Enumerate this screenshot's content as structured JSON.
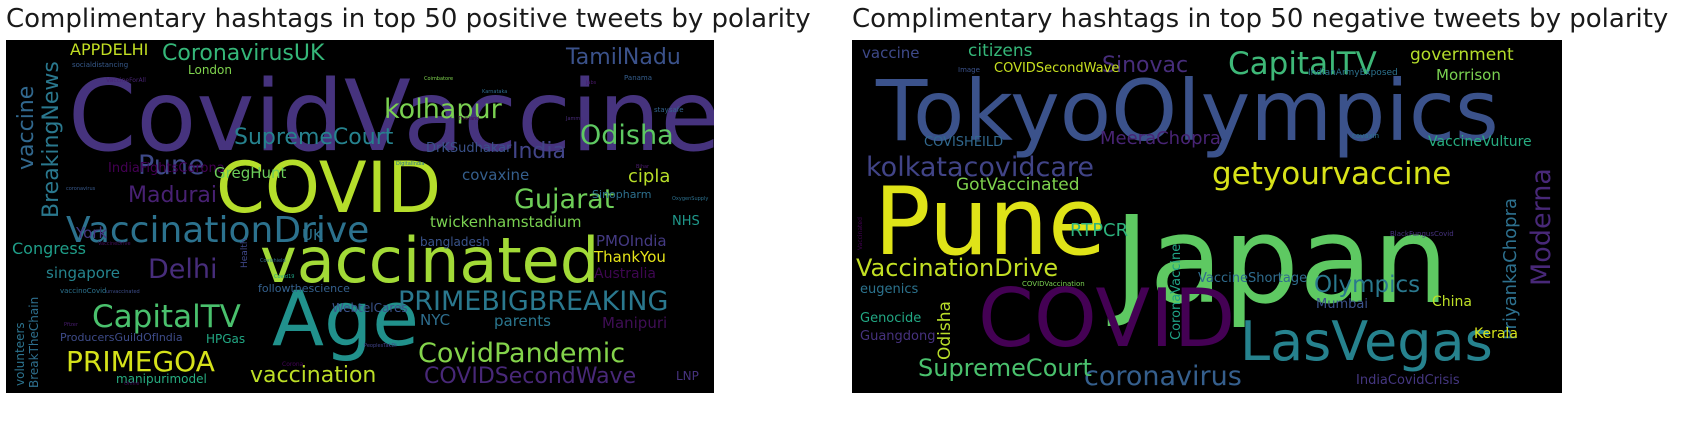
{
  "panels": [
    {
      "title": "Complimentary hashtags in top 50 positive tweets by polarity",
      "words": [
        {
          "text": "CovidVaccine",
          "color": "#46337e"
        },
        {
          "text": "COVID",
          "color": "#b5de2b"
        },
        {
          "text": "vaccinated",
          "color": "#a2da37"
        },
        {
          "text": "Age",
          "color": "#21918c"
        },
        {
          "text": "VaccinationDrive",
          "color": "#2c728e"
        },
        {
          "text": "CapitalTV",
          "color": "#4ac16d"
        },
        {
          "text": "PRIMEGOA",
          "color": "#d5e21a"
        },
        {
          "text": "kolhapur",
          "color": "#7ad151"
        },
        {
          "text": "CoronavirusUK",
          "color": "#35b779"
        },
        {
          "text": "APPDELHI",
          "color": "#c2df23"
        },
        {
          "text": "TamilNadu",
          "color": "#3b528b"
        },
        {
          "text": "Odisha",
          "color": "#5ec962"
        },
        {
          "text": "Gujarat",
          "color": "#6ece58"
        },
        {
          "text": "Pune",
          "color": "#3e4989"
        },
        {
          "text": "SupremeCourt",
          "color": "#26828e"
        },
        {
          "text": "India",
          "color": "#414487"
        },
        {
          "text": "BreakingNews",
          "color": "#2a788e"
        },
        {
          "text": "vaccine",
          "color": "#31688e"
        },
        {
          "text": "Delhi",
          "color": "#472d7b"
        },
        {
          "text": "Madurai",
          "color": "#482173"
        },
        {
          "text": "PRIMEBIGBREAKING",
          "color": "#2a788e"
        },
        {
          "text": "CovidPandemic",
          "color": "#84d44b"
        },
        {
          "text": "vaccination",
          "color": "#bddf26"
        },
        {
          "text": "COVIDSecondWave",
          "color": "#482878"
        },
        {
          "text": "London",
          "color": "#7fd34e"
        },
        {
          "text": "IndiaFightsCorona",
          "color": "#440154"
        },
        {
          "text": "DrKSudhakar",
          "color": "#3b528b"
        },
        {
          "text": "GregHunt",
          "color": "#6ccd5a"
        },
        {
          "text": "covaxine",
          "color": "#355f8d"
        },
        {
          "text": "cipla",
          "color": "#b8de29"
        },
        {
          "text": "Sinopharm",
          "color": "#2d708e"
        },
        {
          "text": "twickenhamstadium",
          "color": "#7ad151"
        },
        {
          "text": "NHS",
          "color": "#1f988b"
        },
        {
          "text": "PMOIndia",
          "color": "#443a83"
        },
        {
          "text": "ThankYou",
          "color": "#e5e419"
        },
        {
          "text": "Australia",
          "color": "#3e0751"
        },
        {
          "text": "bangladesh",
          "color": "#3a548c"
        },
        {
          "text": "Congress",
          "color": "#1f9e89"
        },
        {
          "text": "singapore",
          "color": "#25848e"
        },
        {
          "text": "York",
          "color": "#453781"
        },
        {
          "text": "UK",
          "color": "#2c728e"
        },
        {
          "text": "followthescience",
          "color": "#34608d"
        },
        {
          "text": "WebtelCares",
          "color": "#3a538b"
        },
        {
          "text": "NYC",
          "color": "#2e6e8e"
        },
        {
          "text": "parents",
          "color": "#2a768e"
        },
        {
          "text": "Manipuri",
          "color": "#3f0e55"
        },
        {
          "text": "HPGas",
          "color": "#22a884"
        },
        {
          "text": "ProducersGuildOfIndia",
          "color": "#3e4c8a"
        },
        {
          "text": "manipurimodel",
          "color": "#27ad81"
        },
        {
          "text": "LNP",
          "color": "#46327e"
        },
        {
          "text": "volunteers",
          "color": "#2c738e"
        },
        {
          "text": "BreakTheChain",
          "color": "#2e6f8e"
        },
        {
          "text": "socialdistancing",
          "color": "#375a8c"
        },
        {
          "text": "VaccineForAll",
          "color": "#482475"
        },
        {
          "text": "Panama",
          "color": "#355e8d"
        },
        {
          "text": "staysafe",
          "color": "#33638d"
        },
        {
          "text": "Coimbatore",
          "color": "#7fd34e"
        },
        {
          "text": "Thailand",
          "color": "#4a0c4e"
        },
        {
          "text": "Health",
          "color": "#3f4788"
        },
        {
          "text": "vaccinoCovid",
          "color": "#2c728e"
        },
        {
          "text": "Pfizer",
          "color": "#481d6f"
        },
        {
          "text": "Corona",
          "color": "#450559"
        },
        {
          "text": "PeoplesTakDi",
          "color": "#41448a"
        },
        {
          "text": "Covishield",
          "color": "#2e6d8e"
        },
        {
          "text": "Covid19",
          "color": "#20a486"
        },
        {
          "text": "VaccineDrive",
          "color": "#440f5a"
        },
        {
          "text": "OxygenSupply",
          "color": "#2d718e"
        },
        {
          "text": "coronavirus",
          "color": "#38598c"
        },
        {
          "text": "jabs",
          "color": "#48186a"
        },
        {
          "text": "Jammu",
          "color": "#4b2d7f"
        },
        {
          "text": "Onfire",
          "color": "#440a58"
        },
        {
          "text": "unvaccinated",
          "color": "#3d4e8a"
        },
        {
          "text": "Karnataka",
          "color": "#2f6c8e"
        },
        {
          "text": "DigitalIndia",
          "color": "#2b758e"
        },
        {
          "text": "Bihar",
          "color": "#4c1d6f"
        }
      ]
    },
    {
      "title": "Complimentary hashtags in top 50 negative tweets by polarity",
      "words": [
        {
          "text": "TokyoOlympics",
          "color": "#3b528b"
        },
        {
          "text": "Japan",
          "color": "#5ec962"
        },
        {
          "text": "Pune",
          "color": "#dfe318"
        },
        {
          "text": "COVID",
          "color": "#440154"
        },
        {
          "text": "LasVegas",
          "color": "#26828e"
        },
        {
          "text": "CapitalTV",
          "color": "#3eb878"
        },
        {
          "text": "getyourvaccine",
          "color": "#d8e219"
        },
        {
          "text": "kolkatacovidcare",
          "color": "#414487"
        },
        {
          "text": "coronavirus",
          "color": "#355f8d"
        },
        {
          "text": "VaccinationDrive",
          "color": "#c2df23"
        },
        {
          "text": "SupremeCourt",
          "color": "#4ac16d"
        },
        {
          "text": "Olympics",
          "color": "#2a788e"
        },
        {
          "text": "Moderna",
          "color": "#482878"
        },
        {
          "text": "Sinovac",
          "color": "#472d7b"
        },
        {
          "text": "citizens",
          "color": "#35b779"
        },
        {
          "text": "government",
          "color": "#b5de2b"
        },
        {
          "text": "Morrison",
          "color": "#7ad151"
        },
        {
          "text": "vaccine",
          "color": "#3e4989"
        },
        {
          "text": "COVIDSecondWave",
          "color": "#c8e020"
        },
        {
          "text": "IndianArmyExposed",
          "color": "#2c728e"
        },
        {
          "text": "MeeraChopra",
          "color": "#482475"
        },
        {
          "text": "COVISHEILD",
          "color": "#31688e"
        },
        {
          "text": "VaccineVulture",
          "color": "#27ad81"
        },
        {
          "text": "PriyankaChopra",
          "color": "#2d708e"
        },
        {
          "text": "GotVaccinated",
          "color": "#7fd34e"
        },
        {
          "text": "RTPCR",
          "color": "#2db27d"
        },
        {
          "text": "CoronaVaccine",
          "color": "#20a386"
        },
        {
          "text": "Odisha",
          "color": "#b8de29"
        },
        {
          "text": "eugenics",
          "color": "#2c738e"
        },
        {
          "text": "Genocide",
          "color": "#22a884"
        },
        {
          "text": "Guangdong",
          "color": "#46327e"
        },
        {
          "text": "Mumbai",
          "color": "#3b528b"
        },
        {
          "text": "China",
          "color": "#bddf26"
        },
        {
          "text": "Kerala",
          "color": "#d5e21a"
        },
        {
          "text": "IndiaCovidCrisis",
          "color": "#453781"
        },
        {
          "text": "VaccineShortage",
          "color": "#2f6c8e"
        },
        {
          "text": "COVIDVaccination",
          "color": "#7ad151"
        },
        {
          "text": "BlackFungusCovid",
          "color": "#46337e"
        },
        {
          "text": "covaxin",
          "color": "#2c728e"
        },
        {
          "text": "Image",
          "color": "#3b528b"
        },
        {
          "text": "Vaccinated",
          "color": "#440154"
        }
      ]
    }
  ]
}
